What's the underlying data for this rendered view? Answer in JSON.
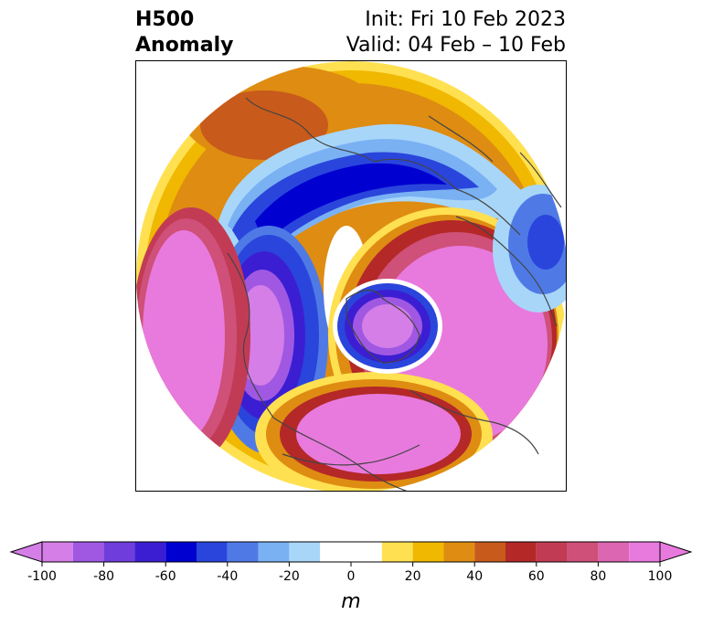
{
  "title": {
    "left_line1": "H500",
    "left_line2": "Anomaly",
    "right_line1": "Init: Fri 10 Feb 2023",
    "right_line2": "Valid: 04 Feb – 10 Feb"
  },
  "colorbar": {
    "units": "m",
    "ticks": [
      "-100",
      "-80",
      "-60",
      "-40",
      "-20",
      "0",
      "20",
      "40",
      "60",
      "80",
      "100"
    ],
    "bins": [
      -100,
      -90,
      -80,
      -70,
      -60,
      -50,
      -40,
      -30,
      -20,
      -10,
      10,
      20,
      30,
      40,
      50,
      60,
      70,
      80,
      90,
      100
    ],
    "colors": [
      "#d57ee8",
      "#a058e3",
      "#6e3ddb",
      "#3c1ed2",
      "#0000d0",
      "#2a45dc",
      "#4f7ae6",
      "#7ab1f3",
      "#a8d6f9",
      "#ffffff",
      "#ffe050",
      "#f0b800",
      "#de8c12",
      "#c85a1c",
      "#b42828",
      "#c23b55",
      "#cf5078",
      "#dd66b2",
      "#e87ade"
    ],
    "extend": "both"
  },
  "map": {
    "projection": "north-polar-stereographic",
    "features": [
      "coastlines",
      "country-borders",
      "state-borders"
    ]
  }
}
